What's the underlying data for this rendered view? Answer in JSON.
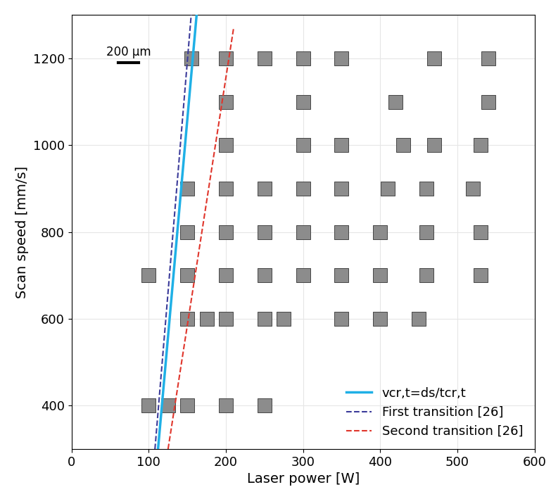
{
  "chart_data": {
    "type": "line",
    "x_label": "Laser power [W]",
    "y_label": "Scan speed [mm/s]",
    "xlim": [
      0,
      600
    ],
    "xticks": [
      0,
      100,
      200,
      300,
      400,
      500,
      600
    ],
    "ylim": [
      300,
      1300
    ],
    "yticks": [
      400,
      600,
      800,
      1000,
      1200
    ],
    "grid": true,
    "legend": "lower right",
    "scale_bar": "200 µm",
    "series": [
      {
        "name": "vcr,t=ds/tcr,t",
        "color": "#1fb0e6",
        "line_style": "solid",
        "x": [
          112,
          162
        ],
        "values": [
          300,
          1300
        ]
      },
      {
        "name": "First transition [26]",
        "color": "#3b3b9a",
        "line_style": "dashed",
        "x": [
          108,
          155
        ],
        "values": [
          300,
          1300
        ]
      },
      {
        "name": "Second transition [26]",
        "color": "#e0352b",
        "line_style": "dashed",
        "x": [
          125,
          210
        ],
        "values": [
          300,
          1270
        ]
      },
      {
        "type": "scatter",
        "color": "#8c8c8c",
        "marker": "square",
        "x": [
          155,
          200,
          250,
          300,
          350,
          470,
          540,
          200,
          300,
          420,
          540,
          200,
          300,
          350,
          430,
          470,
          530,
          150,
          200,
          250,
          300,
          350,
          410,
          460,
          520,
          150,
          200,
          250,
          300,
          350,
          400,
          460,
          530,
          100,
          150,
          200,
          250,
          300,
          350,
          400,
          460,
          530,
          150,
          175,
          200,
          250,
          275,
          350,
          400,
          450,
          100,
          125,
          150,
          200,
          250
        ],
        "values": [
          1200,
          1200,
          1200,
          1200,
          1200,
          1200,
          1200,
          1100,
          1100,
          1100,
          1100,
          1000,
          1000,
          1000,
          1000,
          1000,
          1000,
          900,
          900,
          900,
          900,
          900,
          900,
          900,
          900,
          800,
          800,
          800,
          800,
          800,
          800,
          800,
          800,
          700,
          700,
          700,
          700,
          700,
          700,
          700,
          700,
          700,
          600,
          600,
          600,
          600,
          600,
          600,
          600,
          600,
          400,
          400,
          400,
          400,
          400
        ]
      }
    ]
  }
}
